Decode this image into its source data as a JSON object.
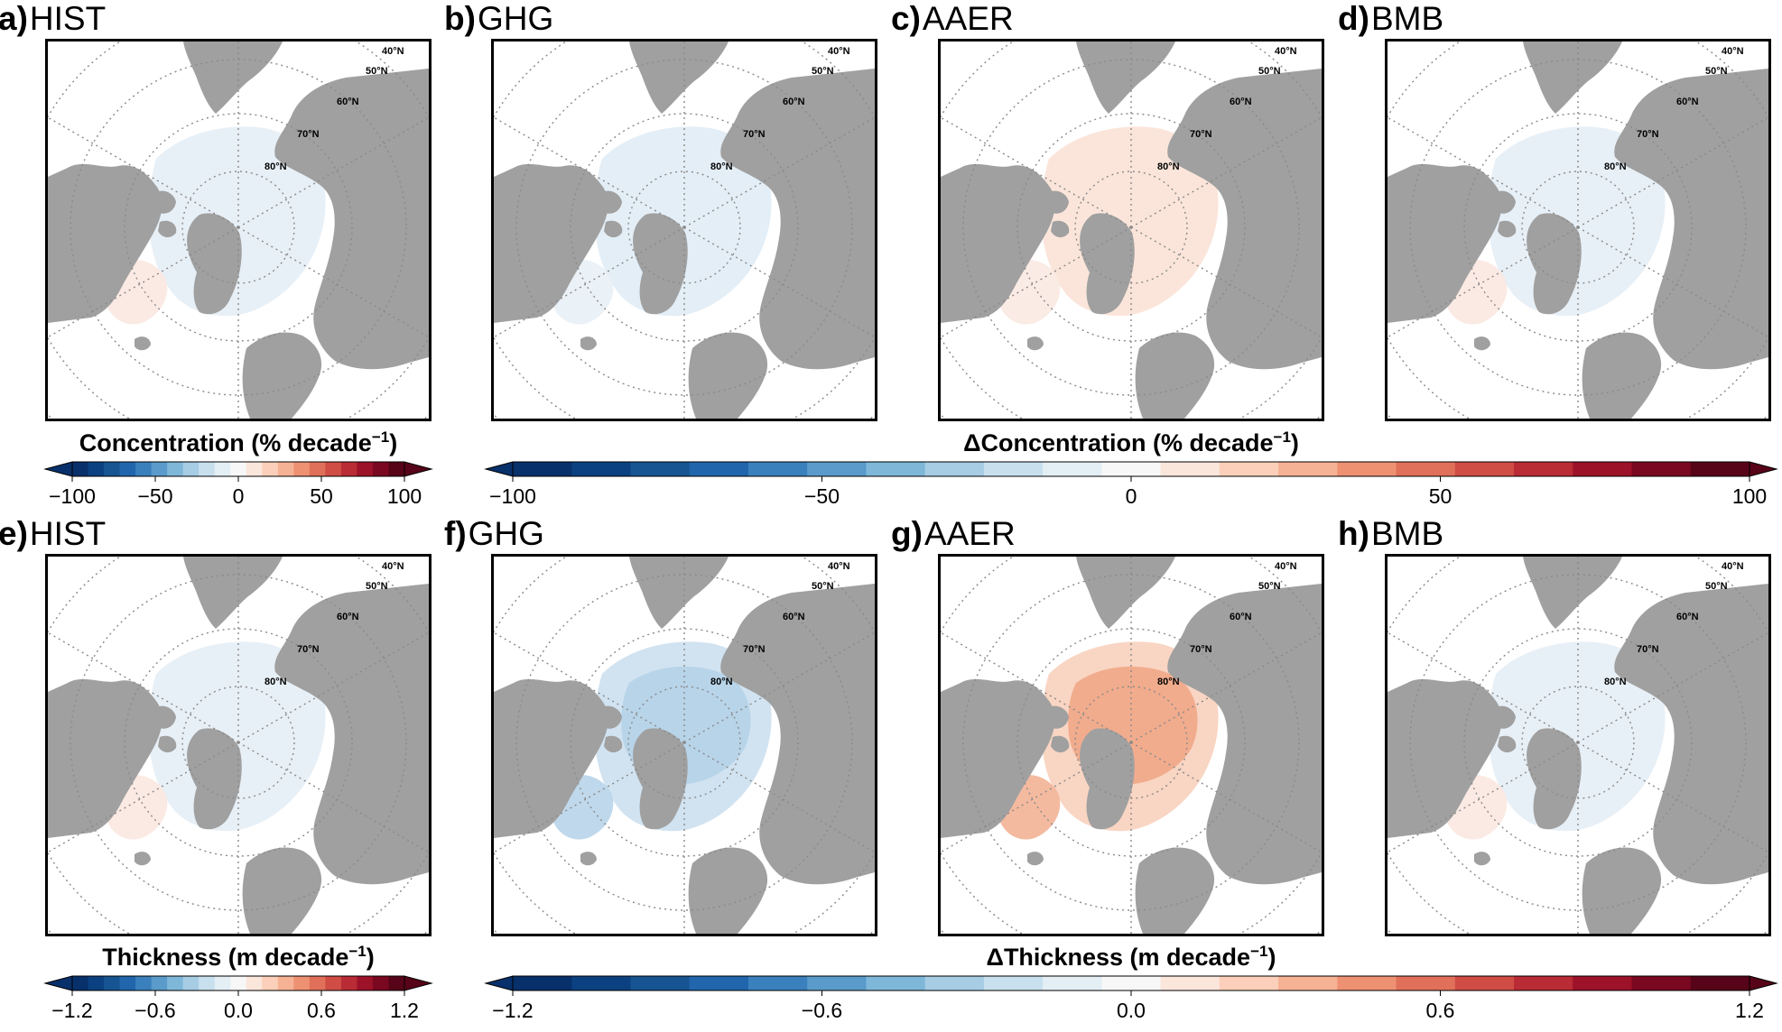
{
  "panels": [
    {
      "letter": "a)",
      "title": "HIST",
      "field": "conc",
      "tint": "mixed-light"
    },
    {
      "letter": "b)",
      "title": "GHG",
      "field": "conc",
      "tint": "blue-light"
    },
    {
      "letter": "c)",
      "title": "AAER",
      "field": "conc",
      "tint": "red-light"
    },
    {
      "letter": "d)",
      "title": "BMB",
      "field": "conc",
      "tint": "mixed-light"
    },
    {
      "letter": "e)",
      "title": "HIST",
      "field": "thick",
      "tint": "mixed-light"
    },
    {
      "letter": "f)",
      "title": "GHG",
      "field": "thick",
      "tint": "blue-medium"
    },
    {
      "letter": "g)",
      "title": "AAER",
      "field": "thick",
      "tint": "red-medium"
    },
    {
      "letter": "h)",
      "title": "BMB",
      "field": "thick",
      "tint": "mixed-light"
    }
  ],
  "latitude_labels": [
    "40°N",
    "50°N",
    "60°N",
    "70°N",
    "80°N"
  ],
  "colorbars": {
    "conc_small": {
      "title_main": "Concentration (% decade",
      "title_sup": "−1",
      "title_end": ")",
      "ticks": [
        "−100",
        "−50",
        "0",
        "50",
        "100"
      ],
      "vmin": -100,
      "vmax": 100,
      "tick_values": [
        -100,
        -50,
        0,
        50,
        100
      ]
    },
    "conc_large": {
      "title_main": "ΔConcentration (% decade",
      "title_sup": "−1",
      "title_end": ")",
      "ticks": [
        "−100",
        "−50",
        "0",
        "50",
        "100"
      ],
      "vmin": -100,
      "vmax": 100,
      "tick_values": [
        -100,
        -50,
        0,
        50,
        100
      ]
    },
    "thick_small": {
      "title_main": "Thickness (m decade",
      "title_sup": "−1",
      "title_end": ")",
      "ticks": [
        "−1.2",
        "−0.6",
        "0.0",
        "0.6",
        "1.2"
      ],
      "vmin": -1.2,
      "vmax": 1.2,
      "tick_values": [
        -1.2,
        -0.6,
        0.0,
        0.6,
        1.2
      ]
    },
    "thick_large": {
      "title_main": "ΔThickness (m decade",
      "title_sup": "−1",
      "title_end": ")",
      "ticks": [
        "−1.2",
        "−0.6",
        "0.0",
        "0.6",
        "1.2"
      ],
      "vmin": -1.2,
      "vmax": 1.2,
      "tick_values": [
        -1.2,
        -0.6,
        0.0,
        0.6,
        1.2
      ]
    }
  },
  "colors": {
    "land": "#a0a0a0",
    "ocean": "#ffffff",
    "grid": "#8a8a8a",
    "palette": [
      "#08306b",
      "#0b4181",
      "#175592",
      "#2166ac",
      "#3a80bc",
      "#5a9bcb",
      "#7fb7d9",
      "#a6cde4",
      "#c8e0ee",
      "#e3eef5",
      "#f7f7f7",
      "#fbe6dc",
      "#fbcfb9",
      "#f6b294",
      "#ee9173",
      "#e0705a",
      "#cf4d45",
      "#b92b35",
      "#9c1228",
      "#7a0821",
      "#570418"
    ]
  }
}
